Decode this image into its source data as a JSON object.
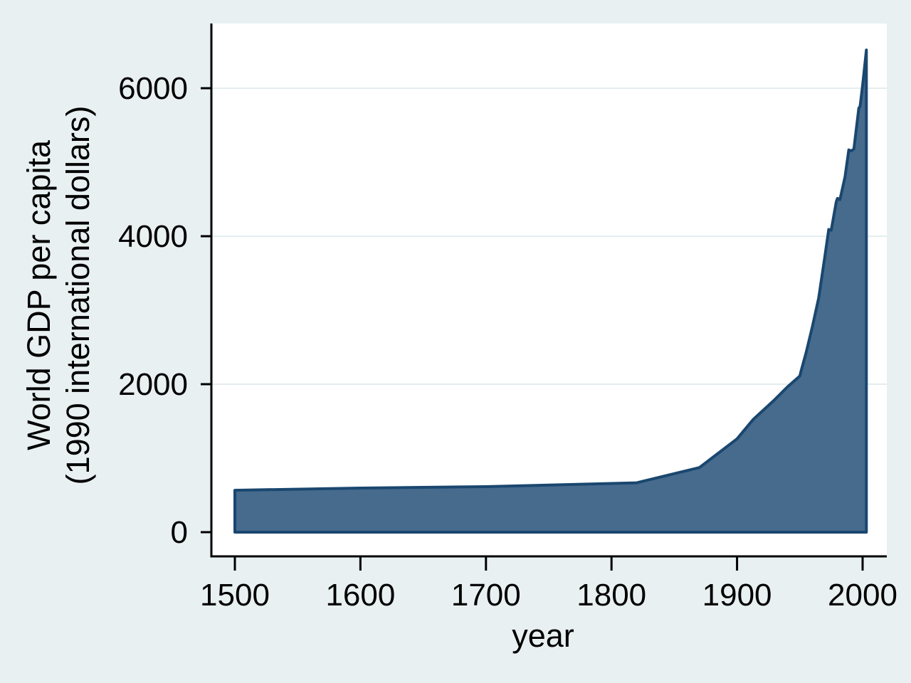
{
  "figure": {
    "background_color": "#E9F0F2",
    "plot_background_color": "#FFFFFF",
    "gridline_color": "#E4EDF0",
    "axis_color": "#000000",
    "text_color": "#000000",
    "area_fill_color": "#476B8D",
    "area_outline_color": "#1A476F"
  },
  "chart_data": {
    "type": "area",
    "title": "",
    "xlabel": "year",
    "ylabel_line1": "World GDP per capita",
    "ylabel_line2": "(1990 international dollars)",
    "xticks": [
      1500,
      1600,
      1700,
      1800,
      1900,
      2000
    ],
    "yticks": [
      0,
      2000,
      4000,
      6000
    ],
    "xlim": [
      1482,
      2019
    ],
    "ylim": [
      0,
      6880
    ],
    "grid": "horizontal",
    "legend_position": "none",
    "series": [
      {
        "name": "World GDP per capita (1990 international dollars)",
        "points": [
          [
            1500,
            566
          ],
          [
            1600,
            596
          ],
          [
            1700,
            615
          ],
          [
            1820,
            667
          ],
          [
            1870,
            873
          ],
          [
            1900,
            1262
          ],
          [
            1913,
            1526
          ],
          [
            1929,
            1775
          ],
          [
            1940,
            1962
          ],
          [
            1950,
            2111
          ],
          [
            1951,
            2180
          ],
          [
            1955,
            2425
          ],
          [
            1960,
            2777
          ],
          [
            1965,
            3165
          ],
          [
            1970,
            3736
          ],
          [
            1973,
            4091
          ],
          [
            1975,
            4081
          ],
          [
            1979,
            4466
          ],
          [
            1980,
            4512
          ],
          [
            1982,
            4494
          ],
          [
            1986,
            4803
          ],
          [
            1989,
            5166
          ],
          [
            1991,
            5154
          ],
          [
            1993,
            5176
          ],
          [
            1997,
            5732
          ],
          [
            1998,
            5756
          ],
          [
            2000,
            6038
          ],
          [
            2003,
            6516
          ]
        ]
      }
    ]
  }
}
